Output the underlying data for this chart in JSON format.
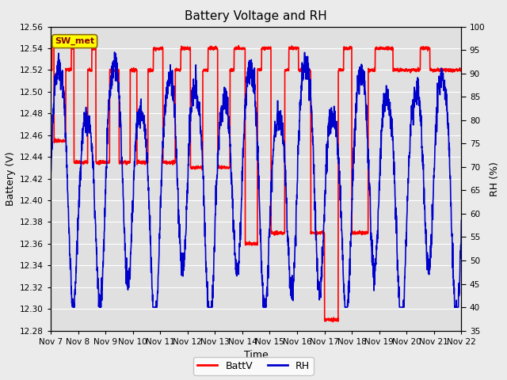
{
  "title": "Battery Voltage and RH",
  "xlabel": "Time",
  "ylabel_left": "Battery (V)",
  "ylabel_right": "RH (%)",
  "annotation": "SW_met",
  "legend_entries": [
    "BattV",
    "RH"
  ],
  "line_color_batt": "#ff0000",
  "line_color_rh": "#0000cc",
  "ylim_left": [
    12.28,
    12.56
  ],
  "ylim_right": [
    35,
    100
  ],
  "yticks_left": [
    12.28,
    12.3,
    12.32,
    12.34,
    12.36,
    12.38,
    12.4,
    12.42,
    12.44,
    12.46,
    12.48,
    12.5,
    12.52,
    12.54,
    12.56
  ],
  "yticks_right": [
    35,
    40,
    45,
    50,
    55,
    60,
    65,
    70,
    75,
    80,
    85,
    90,
    95,
    100
  ],
  "x_tick_labels": [
    "Nov 7",
    "Nov 8",
    "Nov 9",
    "Nov 10",
    "Nov 11",
    "Nov 12",
    "Nov 13",
    "Nov 14",
    "Nov 15",
    "Nov 16",
    "Nov 17",
    "Nov 18",
    "Nov 19",
    "Nov 20",
    "Nov 21",
    "Nov 22"
  ],
  "fig_bg_color": "#ebebeb",
  "plot_bg_color": "#e0e0e0",
  "grid_color": "#ffffff",
  "linewidth": 1.2,
  "title_fontsize": 11,
  "axis_label_fontsize": 9,
  "tick_fontsize": 7.5,
  "annotation_fontsize": 8,
  "annotation_color": "#8b0000",
  "annotation_bg": "#ffff00",
  "annotation_edge": "#8b6914"
}
